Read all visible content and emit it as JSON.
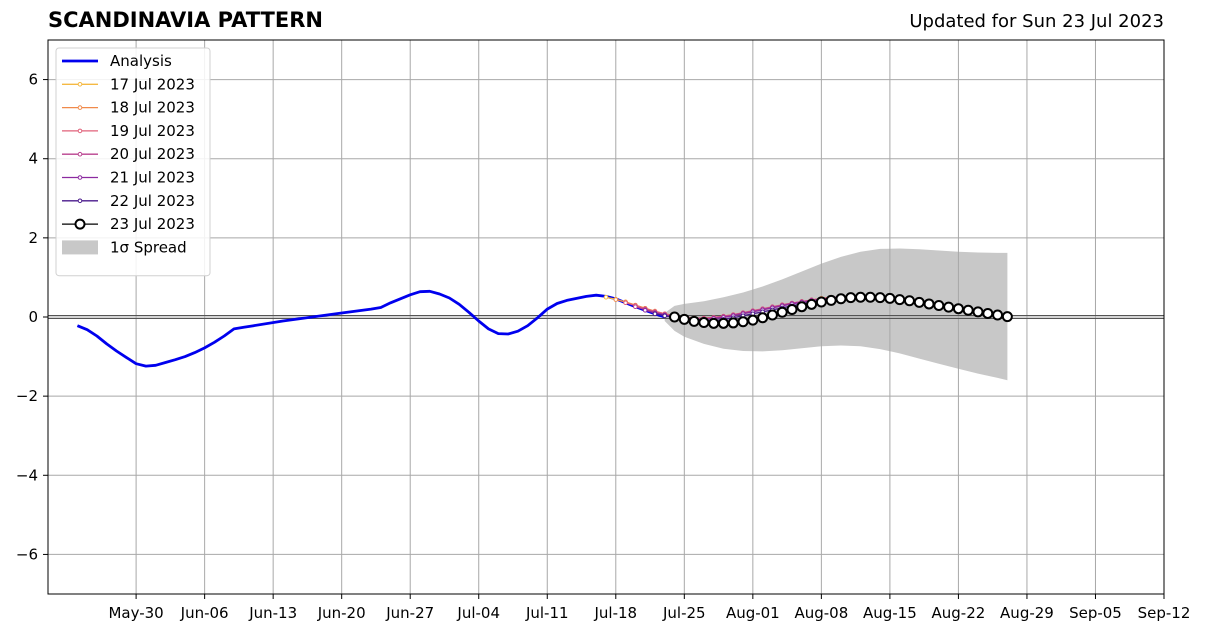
{
  "header": {
    "title": "SCANDINAVIA PATTERN",
    "subtitle": "Updated for Sun 23 Jul 2023"
  },
  "chart_data": {
    "type": "line",
    "title": "SCANDINAVIA PATTERN",
    "subtitle": "Updated for Sun 23 Jul 2023",
    "xlabel": "",
    "ylabel": "",
    "xlim": [
      "2023-05-21",
      "2023-09-12"
    ],
    "ylim": [
      -7,
      7
    ],
    "x_ticks": [
      "May-30",
      "Jun-06",
      "Jun-13",
      "Jun-20",
      "Jun-27",
      "Jul-04",
      "Jul-11",
      "Jul-18",
      "Jul-25",
      "Aug-01",
      "Aug-08",
      "Aug-15",
      "Aug-22",
      "Aug-29",
      "Sep-05",
      "Sep-12"
    ],
    "y_ticks": [
      6,
      4,
      2,
      0,
      -2,
      -4,
      -6
    ],
    "y_tick_labels": [
      "6",
      "4",
      "2",
      "0",
      "−2",
      "−4",
      "−6"
    ],
    "grid": true,
    "legend_position": "upper-left",
    "zero_line": 0,
    "colors": {
      "analysis": "#0000ee",
      "spread": "#c8c8c8",
      "grid": "#a8a8a8",
      "forecast_23": "#000000"
    },
    "series": [
      {
        "name": "Analysis",
        "color": "#0000ee",
        "style": "thick-line",
        "x": [
          "2023-05-24",
          "2023-05-25",
          "2023-05-26",
          "2023-05-27",
          "2023-05-28",
          "2023-05-29",
          "2023-05-30",
          "2023-05-31",
          "2023-06-01",
          "2023-06-02",
          "2023-06-03",
          "2023-06-04",
          "2023-06-05",
          "2023-06-06",
          "2023-06-07",
          "2023-06-08",
          "2023-06-09",
          "2023-06-10",
          "2023-06-11",
          "2023-06-14",
          "2023-06-17",
          "2023-06-20",
          "2023-06-23",
          "2023-06-24",
          "2023-06-25",
          "2023-06-26",
          "2023-06-27",
          "2023-06-28",
          "2023-06-29",
          "2023-06-30",
          "2023-07-01",
          "2023-07-02",
          "2023-07-03",
          "2023-07-04",
          "2023-07-05",
          "2023-07-06",
          "2023-07-07",
          "2023-07-08",
          "2023-07-09",
          "2023-07-10",
          "2023-07-11",
          "2023-07-12",
          "2023-07-13",
          "2023-07-14",
          "2023-07-15",
          "2023-07-16",
          "2023-07-17",
          "2023-07-18",
          "2023-07-19",
          "2023-07-20",
          "2023-07-21",
          "2023-07-22",
          "2023-07-23"
        ],
        "y": [
          -0.22,
          -0.32,
          -0.48,
          -0.68,
          -0.86,
          -1.02,
          -1.18,
          -1.24,
          -1.22,
          -1.15,
          -1.08,
          -1.0,
          -0.9,
          -0.78,
          -0.64,
          -0.48,
          -0.3,
          -0.26,
          -0.22,
          -0.1,
          0.0,
          0.1,
          0.2,
          0.24,
          0.36,
          0.46,
          0.56,
          0.64,
          0.65,
          0.58,
          0.48,
          0.32,
          0.12,
          -0.1,
          -0.3,
          -0.42,
          -0.43,
          -0.36,
          -0.22,
          -0.02,
          0.2,
          0.34,
          0.42,
          0.47,
          0.52,
          0.55,
          0.52,
          0.46,
          0.36,
          0.26,
          0.17,
          0.08,
          0.0
        ]
      },
      {
        "name": "17 Jul 2023",
        "color": "#f5b942",
        "style": "thin-dots",
        "x": [
          "2023-07-17",
          "2023-07-18",
          "2023-07-19",
          "2023-07-20",
          "2023-07-21",
          "2023-07-22",
          "2023-07-23",
          "2023-07-24",
          "2023-07-25",
          "2023-07-26",
          "2023-07-27",
          "2023-07-28",
          "2023-07-29",
          "2023-07-30",
          "2023-07-31",
          "2023-08-01",
          "2023-08-02",
          "2023-08-03",
          "2023-08-04",
          "2023-08-05",
          "2023-08-06",
          "2023-08-07",
          "2023-08-08"
        ],
        "y": [
          0.5,
          0.45,
          0.38,
          0.3,
          0.22,
          0.14,
          0.07,
          0.02,
          -0.02,
          -0.04,
          -0.04,
          -0.02,
          0.01,
          0.05,
          0.09,
          0.14,
          0.19,
          0.24,
          0.29,
          0.34,
          0.39,
          0.43,
          0.47
        ]
      },
      {
        "name": "18 Jul 2023",
        "color": "#f08a4b",
        "style": "thin-dots",
        "x": [
          "2023-07-18",
          "2023-07-19",
          "2023-07-20",
          "2023-07-21",
          "2023-07-22",
          "2023-07-23",
          "2023-07-24",
          "2023-07-25",
          "2023-07-26",
          "2023-07-27",
          "2023-07-28",
          "2023-07-29",
          "2023-07-30",
          "2023-07-31",
          "2023-08-01",
          "2023-08-02",
          "2023-08-03",
          "2023-08-04",
          "2023-08-05",
          "2023-08-06",
          "2023-08-07",
          "2023-08-08",
          "2023-08-09"
        ],
        "y": [
          0.44,
          0.38,
          0.3,
          0.22,
          0.15,
          0.08,
          0.03,
          -0.01,
          -0.03,
          -0.03,
          -0.01,
          0.02,
          0.06,
          0.1,
          0.15,
          0.2,
          0.25,
          0.3,
          0.35,
          0.39,
          0.43,
          0.47,
          0.5
        ]
      },
      {
        "name": "19 Jul 2023",
        "color": "#e0607a",
        "style": "thin-dots",
        "x": [
          "2023-07-19",
          "2023-07-20",
          "2023-07-21",
          "2023-07-22",
          "2023-07-23",
          "2023-07-24",
          "2023-07-25",
          "2023-07-26",
          "2023-07-27",
          "2023-07-28",
          "2023-07-29",
          "2023-07-30",
          "2023-07-31",
          "2023-08-01",
          "2023-08-02",
          "2023-08-03",
          "2023-08-04",
          "2023-08-05",
          "2023-08-06",
          "2023-08-07",
          "2023-08-08",
          "2023-08-09",
          "2023-08-10"
        ],
        "y": [
          0.36,
          0.29,
          0.21,
          0.14,
          0.08,
          0.03,
          -0.01,
          -0.03,
          -0.03,
          -0.01,
          0.02,
          0.06,
          0.11,
          0.16,
          0.21,
          0.26,
          0.31,
          0.35,
          0.39,
          0.43,
          0.46,
          0.49,
          0.5
        ]
      },
      {
        "name": "20 Jul 2023",
        "color": "#b8408e",
        "style": "thin-dots",
        "x": [
          "2023-07-20",
          "2023-07-21",
          "2023-07-22",
          "2023-07-23",
          "2023-07-24",
          "2023-07-25",
          "2023-07-26",
          "2023-07-27",
          "2023-07-28",
          "2023-07-29",
          "2023-07-30",
          "2023-07-31",
          "2023-08-01",
          "2023-08-02",
          "2023-08-03",
          "2023-08-04",
          "2023-08-05",
          "2023-08-06",
          "2023-08-07",
          "2023-08-08",
          "2023-08-09",
          "2023-08-10",
          "2023-08-11"
        ],
        "y": [
          0.26,
          0.19,
          0.12,
          0.06,
          0.01,
          -0.02,
          -0.04,
          -0.04,
          -0.02,
          0.01,
          0.05,
          0.1,
          0.15,
          0.2,
          0.25,
          0.3,
          0.35,
          0.39,
          0.43,
          0.46,
          0.49,
          0.51,
          0.52
        ]
      },
      {
        "name": "21 Jul 2023",
        "color": "#8c2aa0",
        "style": "thin-dots",
        "x": [
          "2023-07-21",
          "2023-07-22",
          "2023-07-23",
          "2023-07-24",
          "2023-07-25",
          "2023-07-26",
          "2023-07-27",
          "2023-07-28",
          "2023-07-29",
          "2023-07-30",
          "2023-07-31",
          "2023-08-01",
          "2023-08-02",
          "2023-08-03",
          "2023-08-04",
          "2023-08-05",
          "2023-08-06",
          "2023-08-07",
          "2023-08-08",
          "2023-08-09",
          "2023-08-10",
          "2023-08-11",
          "2023-08-12"
        ],
        "y": [
          0.17,
          0.1,
          0.05,
          0.0,
          -0.04,
          -0.06,
          -0.06,
          -0.04,
          -0.01,
          0.03,
          0.08,
          0.13,
          0.18,
          0.23,
          0.28,
          0.33,
          0.37,
          0.41,
          0.45,
          0.48,
          0.5,
          0.52,
          0.52
        ]
      },
      {
        "name": "22 Jul 2023",
        "color": "#4a1a8c",
        "style": "thin-dots",
        "x": [
          "2023-07-22",
          "2023-07-23",
          "2023-07-24",
          "2023-07-25",
          "2023-07-26",
          "2023-07-27",
          "2023-07-28",
          "2023-07-29",
          "2023-07-30",
          "2023-07-31",
          "2023-08-01",
          "2023-08-02",
          "2023-08-03",
          "2023-08-04",
          "2023-08-05",
          "2023-08-06",
          "2023-08-07",
          "2023-08-08",
          "2023-08-09",
          "2023-08-10",
          "2023-08-11",
          "2023-08-12",
          "2023-08-13"
        ],
        "y": [
          0.08,
          0.03,
          -0.02,
          -0.06,
          -0.09,
          -0.1,
          -0.09,
          -0.06,
          -0.02,
          0.03,
          0.08,
          0.13,
          0.18,
          0.23,
          0.28,
          0.33,
          0.37,
          0.41,
          0.44,
          0.47,
          0.49,
          0.5,
          0.51
        ]
      },
      {
        "name": "23 Jul 2023",
        "color": "#000000",
        "style": "open-circles",
        "x": [
          "2023-07-24",
          "2023-07-25",
          "2023-07-26",
          "2023-07-27",
          "2023-07-28",
          "2023-07-29",
          "2023-07-30",
          "2023-07-31",
          "2023-08-01",
          "2023-08-02",
          "2023-08-03",
          "2023-08-04",
          "2023-08-05",
          "2023-08-06",
          "2023-08-07",
          "2023-08-08",
          "2023-08-09",
          "2023-08-10",
          "2023-08-11",
          "2023-08-12",
          "2023-08-13",
          "2023-08-14",
          "2023-08-15",
          "2023-08-16",
          "2023-08-17",
          "2023-08-18",
          "2023-08-19",
          "2023-08-20",
          "2023-08-21",
          "2023-08-22",
          "2023-08-23",
          "2023-08-24",
          "2023-08-25",
          "2023-08-26",
          "2023-08-27"
        ],
        "y": [
          0.0,
          -0.06,
          -0.11,
          -0.14,
          -0.16,
          -0.16,
          -0.15,
          -0.12,
          -0.08,
          -0.02,
          0.05,
          0.12,
          0.19,
          0.26,
          0.32,
          0.38,
          0.42,
          0.46,
          0.49,
          0.5,
          0.5,
          0.49,
          0.47,
          0.44,
          0.41,
          0.37,
          0.33,
          0.29,
          0.25,
          0.21,
          0.17,
          0.13,
          0.09,
          0.05,
          0.01
        ]
      }
    ],
    "spread": {
      "name": "1σ Spread",
      "color": "#c8c8c8",
      "x": [
        "2023-07-23",
        "2023-07-24",
        "2023-07-25",
        "2023-07-27",
        "2023-07-29",
        "2023-07-31",
        "2023-08-02",
        "2023-08-04",
        "2023-08-06",
        "2023-08-08",
        "2023-08-10",
        "2023-08-12",
        "2023-08-14",
        "2023-08-16",
        "2023-08-18",
        "2023-08-20",
        "2023-08-22",
        "2023-08-24",
        "2023-08-26",
        "2023-08-27"
      ],
      "upper": [
        0.1,
        0.28,
        0.33,
        0.4,
        0.5,
        0.62,
        0.77,
        0.95,
        1.15,
        1.35,
        1.52,
        1.65,
        1.72,
        1.73,
        1.71,
        1.68,
        1.65,
        1.63,
        1.62,
        1.62
      ],
      "lower": [
        -0.1,
        -0.35,
        -0.5,
        -0.68,
        -0.8,
        -0.86,
        -0.87,
        -0.84,
        -0.79,
        -0.74,
        -0.72,
        -0.74,
        -0.81,
        -0.92,
        -1.05,
        -1.18,
        -1.31,
        -1.43,
        -1.54,
        -1.6
      ]
    }
  }
}
